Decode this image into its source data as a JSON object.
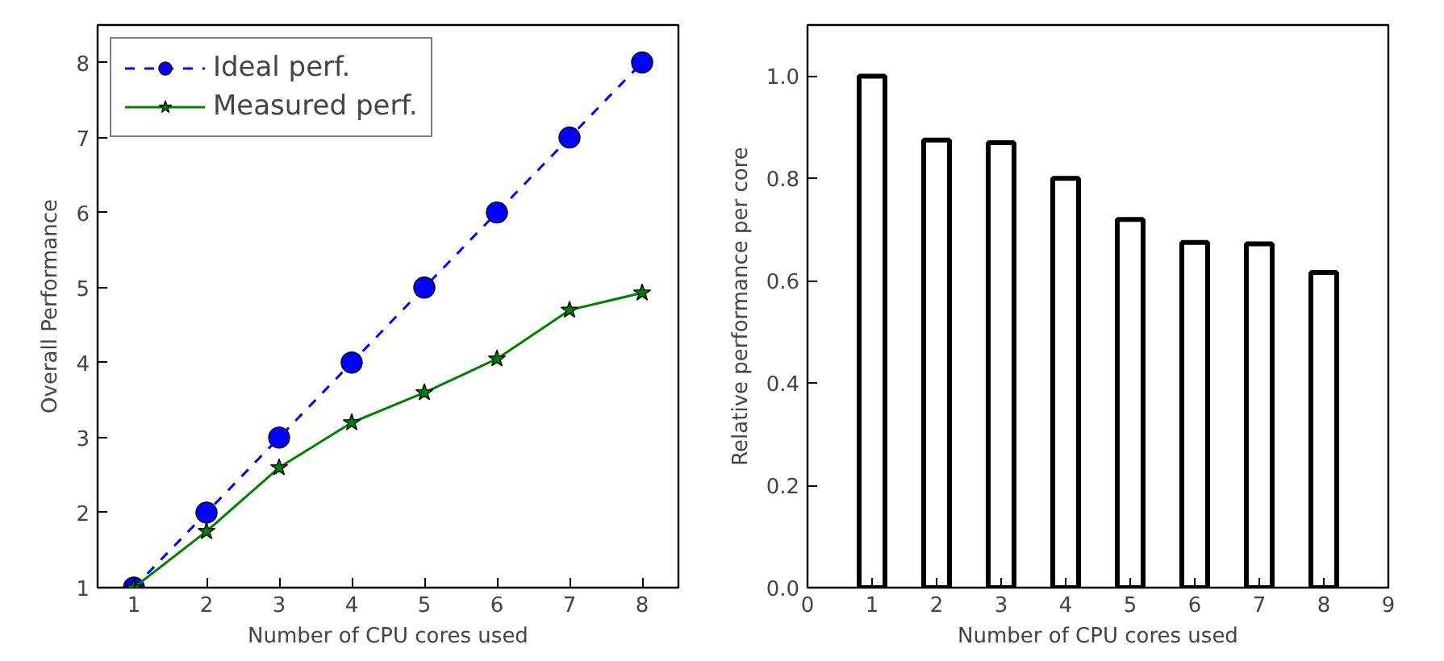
{
  "chart_data": [
    {
      "type": "line",
      "xlabel": "Number of CPU cores used",
      "ylabel": "Overall Performance",
      "x": [
        1,
        2,
        3,
        4,
        5,
        6,
        7,
        8
      ],
      "xlim": [
        0.5,
        8.5
      ],
      "ylim": [
        1,
        8.5
      ],
      "xticks": [
        1,
        2,
        3,
        4,
        5,
        6,
        7,
        8
      ],
      "yticks": [
        1,
        2,
        3,
        4,
        5,
        6,
        7,
        8
      ],
      "grid": false,
      "legend": "top left",
      "series": [
        {
          "name": "Ideal perf.",
          "color": "#0000ff",
          "marker": "circle",
          "line_style": "dashed",
          "values": [
            1,
            2,
            3,
            4,
            5,
            6,
            7,
            8
          ]
        },
        {
          "name": "Measured perf.",
          "color": "#007f00",
          "marker": "star",
          "line_style": "solid",
          "values": [
            1,
            1.75,
            2.6,
            3.2,
            3.6,
            4.05,
            4.7,
            4.93
          ]
        }
      ]
    },
    {
      "type": "bar",
      "xlabel": "Number of CPU cores used",
      "ylabel": "Relative performance per core",
      "x": [
        1,
        2,
        3,
        4,
        5,
        6,
        7,
        8
      ],
      "xlim": [
        0,
        9
      ],
      "ylim": [
        0,
        1.1
      ],
      "xticks": [
        0,
        1,
        2,
        3,
        4,
        5,
        6,
        7,
        8,
        9
      ],
      "yticks": [
        {
          "value": 0,
          "label": "0.0"
        },
        {
          "value": 0.2,
          "label": "0.2"
        },
        {
          "value": 0.4,
          "label": "0.4"
        },
        {
          "value": 0.6,
          "label": "0.6"
        },
        {
          "value": 0.8,
          "label": "0.8"
        },
        {
          "value": 1.0,
          "label": "1.0"
        }
      ],
      "grid": false,
      "color": "#000000",
      "values": [
        1.0,
        0.875,
        0.87,
        0.8,
        0.72,
        0.675,
        0.672,
        0.616
      ]
    }
  ]
}
